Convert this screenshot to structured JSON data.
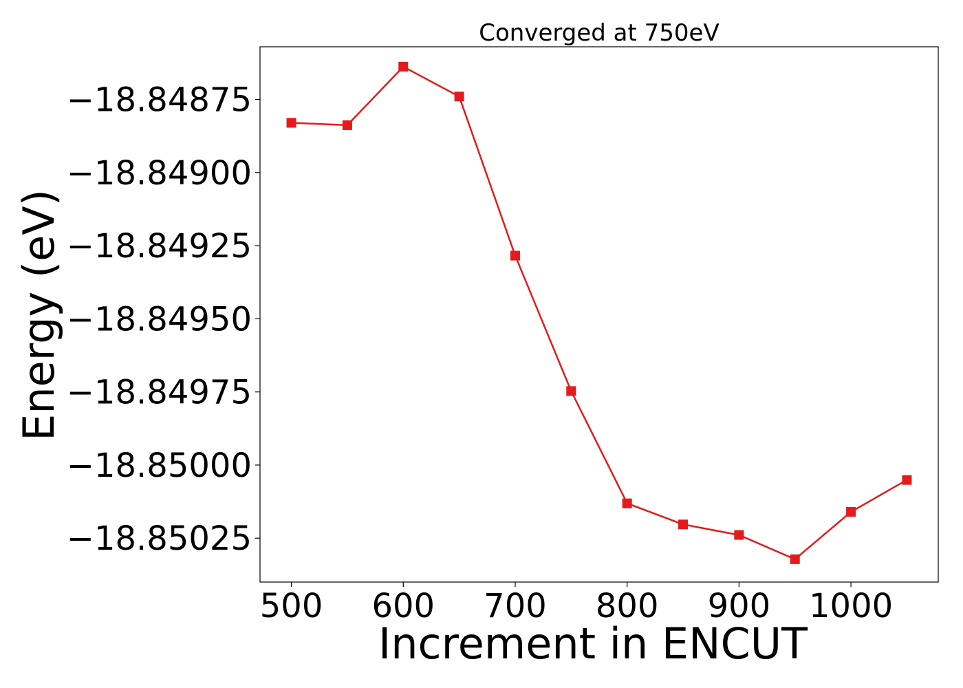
{
  "chart_data": {
    "type": "line",
    "title": "Converged at 750eV",
    "xlabel": "Increment in ENCUT",
    "ylabel": "Energy (eV)",
    "xlim": [
      472,
      1078
    ],
    "ylim": [
      -18.8504,
      -18.84857
    ],
    "x_ticks": [
      500,
      600,
      700,
      800,
      900,
      1000
    ],
    "x_tick_labels": [
      "500",
      "600",
      "700",
      "800",
      "900",
      "1000"
    ],
    "y_ticks": [
      -18.84875,
      -18.849,
      -18.84925,
      -18.8495,
      -18.84975,
      -18.85,
      -18.85025
    ],
    "y_tick_labels": [
      "−18.84875",
      "−18.84900",
      "−18.84925",
      "−18.84950",
      "−18.84975",
      "−18.85000",
      "−18.85025"
    ],
    "grid": false,
    "series": [
      {
        "color": "#e41a1c",
        "marker": "square",
        "x": [
          500,
          550,
          600,
          650,
          700,
          750,
          800,
          850,
          900,
          950,
          1000,
          1050
        ],
        "y": [
          -18.84883,
          -18.848838,
          -18.848638,
          -18.84874,
          -18.849284,
          -18.849747,
          -18.850131,
          -18.850203,
          -18.850239,
          -18.850322,
          -18.85016,
          -18.850051
        ]
      }
    ]
  }
}
